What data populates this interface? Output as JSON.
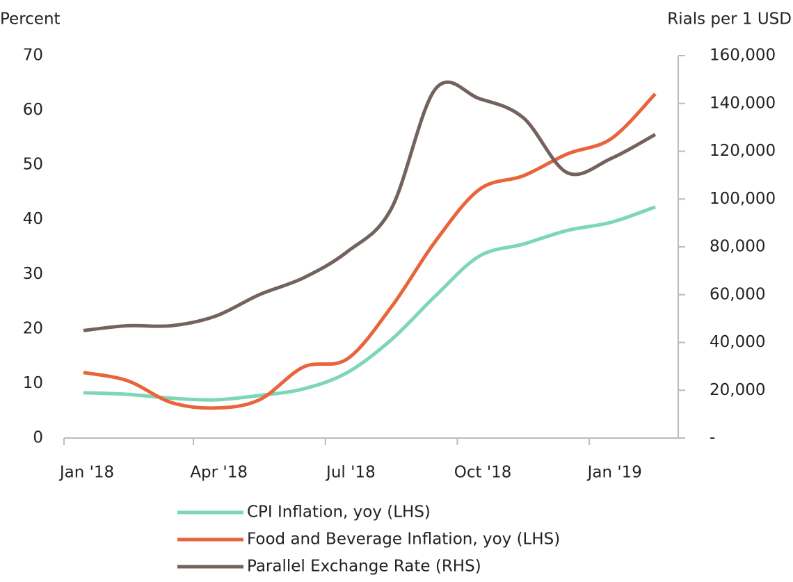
{
  "chart_data": {
    "type": "line",
    "ylabel": "Percent",
    "y2label": "Rials per 1 USD",
    "categories": [
      "Jan '18",
      null,
      null,
      "Apr '18",
      null,
      null,
      "Jul '18",
      null,
      null,
      "Oct '18",
      null,
      null,
      "Jan '19",
      null
    ],
    "series": [
      {
        "name": "CPI Inflation, yoy (LHS)",
        "color": "#7dd6b6",
        "values": [
          8.3,
          8.0,
          7.3,
          7.0,
          7.8,
          9.0,
          12.0,
          18.0,
          26.0,
          33.3,
          35.5,
          38.0,
          39.5,
          42.3
        ]
      },
      {
        "name": "Food and Beverage Inflation, yoy (LHS)",
        "color": "#e8643c",
        "values": [
          12.0,
          10.5,
          6.5,
          5.5,
          7.0,
          13.0,
          14.5,
          24.0,
          36.0,
          45.5,
          48.0,
          52.0,
          54.8,
          63.0
        ]
      },
      {
        "name": "Parallel Exchange Rate (RHS)",
        "color": "#73625d",
        "axis": "y2",
        "values": [
          45000,
          47000,
          47000,
          51000,
          60000,
          67000,
          78000,
          96000,
          146000,
          142000,
          134000,
          111000,
          117000,
          127000
        ]
      }
    ],
    "ylim": [
      0,
      70
    ],
    "yticks": [
      0,
      10,
      20,
      30,
      40,
      50,
      60,
      70
    ],
    "y2lim": [
      0,
      160000
    ],
    "y2ticks": [
      {
        "value": 0,
        "label": "-"
      },
      {
        "value": 20000,
        "label": "20,000"
      },
      {
        "value": 40000,
        "label": "40,000"
      },
      {
        "value": 60000,
        "label": "60,000"
      },
      {
        "value": 80000,
        "label": "80,000"
      },
      {
        "value": 100000,
        "label": "100,000"
      },
      {
        "value": 120000,
        "label": "120,000"
      },
      {
        "value": 140000,
        "label": "140,000"
      },
      {
        "value": 160000,
        "label": "160,000"
      }
    ],
    "legend": "bottom"
  }
}
